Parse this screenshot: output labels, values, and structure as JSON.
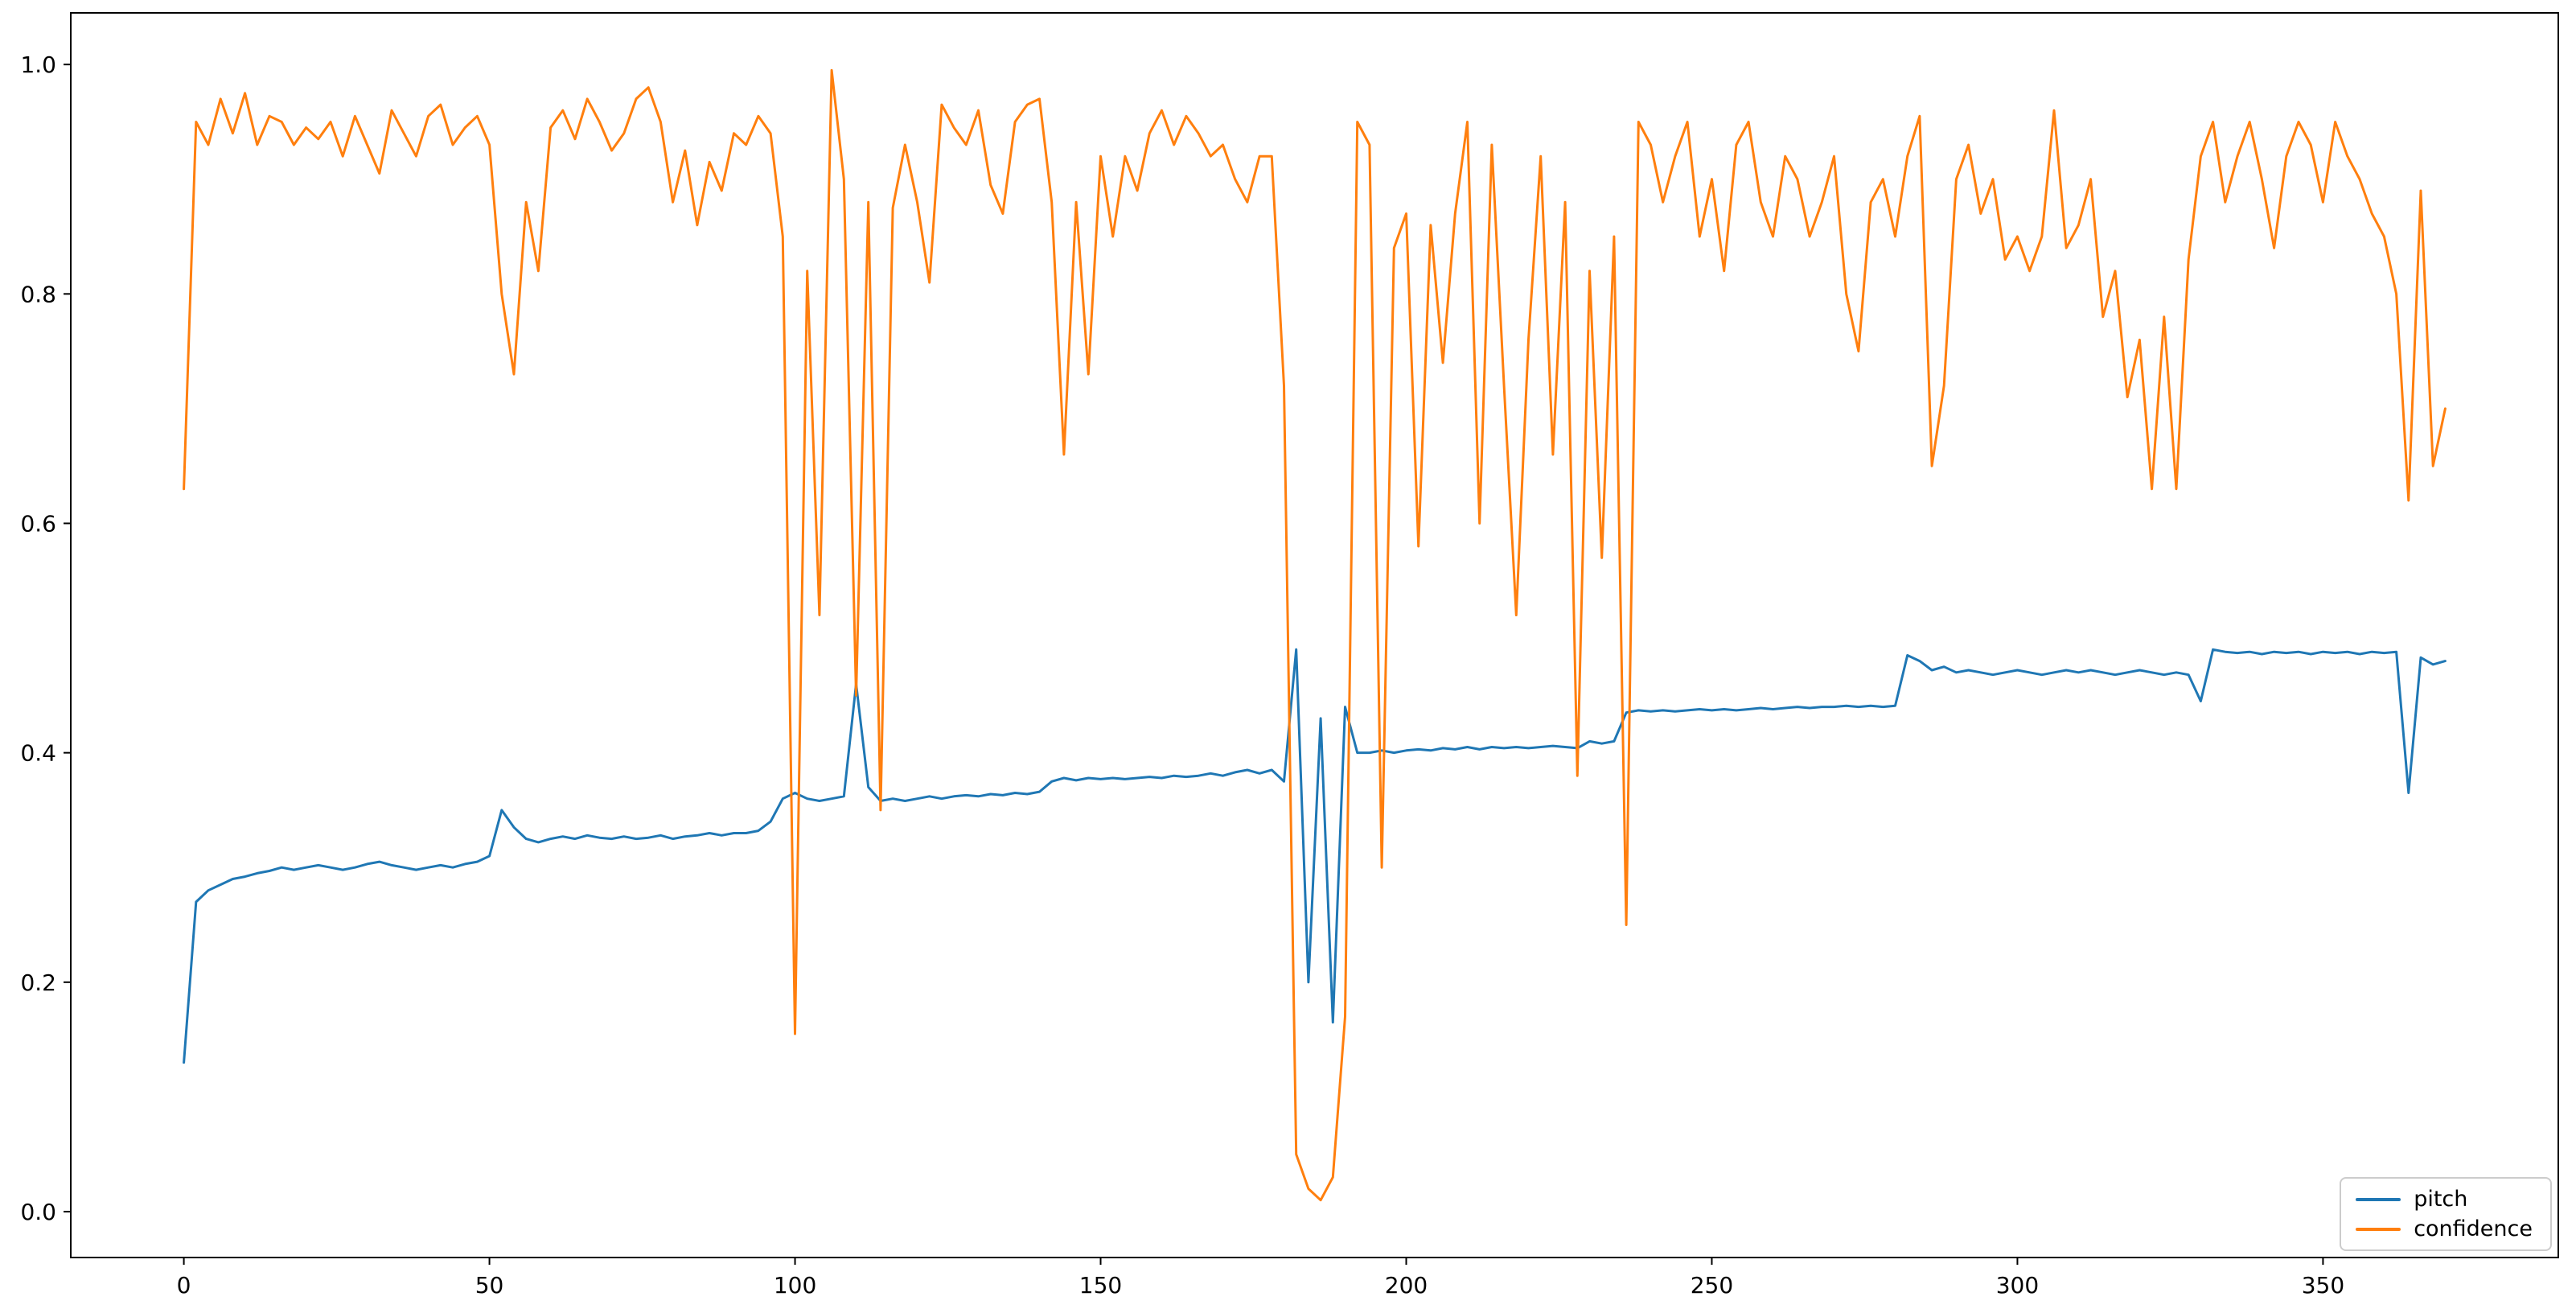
{
  "figure": {
    "background": "#ffffff",
    "axes_border_color": "#000000"
  },
  "legend": {
    "position": "lower-right",
    "entries": [
      "pitch",
      "confidence"
    ]
  },
  "chart_data": {
    "type": "line",
    "title": "",
    "xlabel": "",
    "ylabel": "",
    "grid": false,
    "xlim": [
      -18.5,
      388.5
    ],
    "ylim": [
      -0.04,
      1.045
    ],
    "xticks": [
      0,
      50,
      100,
      150,
      200,
      250,
      300,
      350
    ],
    "xtick_labels": [
      "0",
      "50",
      "100",
      "150",
      "200",
      "250",
      "300",
      "350"
    ],
    "yticks": [
      0.0,
      0.2,
      0.4,
      0.6,
      0.8,
      1.0
    ],
    "ytick_labels": [
      "0.0",
      "0.2",
      "0.4",
      "0.6",
      "0.8",
      "1.0"
    ],
    "x": [
      0,
      2,
      4,
      6,
      8,
      10,
      12,
      14,
      16,
      18,
      20,
      22,
      24,
      26,
      28,
      30,
      32,
      34,
      36,
      38,
      40,
      42,
      44,
      46,
      48,
      50,
      52,
      54,
      56,
      58,
      60,
      62,
      64,
      66,
      68,
      70,
      72,
      74,
      76,
      78,
      80,
      82,
      84,
      86,
      88,
      90,
      92,
      94,
      96,
      98,
      100,
      102,
      104,
      106,
      108,
      110,
      112,
      114,
      116,
      118,
      120,
      122,
      124,
      126,
      128,
      130,
      132,
      134,
      136,
      138,
      140,
      142,
      144,
      146,
      148,
      150,
      152,
      154,
      156,
      158,
      160,
      162,
      164,
      166,
      168,
      170,
      172,
      174,
      176,
      178,
      180,
      182,
      184,
      186,
      188,
      190,
      192,
      194,
      196,
      198,
      200,
      202,
      204,
      206,
      208,
      210,
      212,
      214,
      216,
      218,
      220,
      222,
      224,
      226,
      228,
      230,
      232,
      234,
      236,
      238,
      240,
      242,
      244,
      246,
      248,
      250,
      252,
      254,
      256,
      258,
      260,
      262,
      264,
      266,
      268,
      270,
      272,
      274,
      276,
      278,
      280,
      282,
      284,
      286,
      288,
      290,
      292,
      294,
      296,
      298,
      300,
      302,
      304,
      306,
      308,
      310,
      312,
      314,
      316,
      318,
      320,
      322,
      324,
      326,
      328,
      330,
      332,
      334,
      336,
      338,
      340,
      342,
      344,
      346,
      348,
      350,
      352,
      354,
      356,
      358,
      360,
      362,
      364,
      366,
      368,
      370
    ],
    "series": [
      {
        "name": "pitch",
        "color": "#1f77b4",
        "values": [
          0.13,
          0.27,
          0.28,
          0.285,
          0.29,
          0.292,
          0.295,
          0.297,
          0.3,
          0.298,
          0.3,
          0.302,
          0.3,
          0.298,
          0.3,
          0.303,
          0.305,
          0.302,
          0.3,
          0.298,
          0.3,
          0.302,
          0.3,
          0.303,
          0.305,
          0.31,
          0.35,
          0.335,
          0.325,
          0.322,
          0.325,
          0.327,
          0.325,
          0.328,
          0.326,
          0.325,
          0.327,
          0.325,
          0.326,
          0.328,
          0.325,
          0.327,
          0.328,
          0.33,
          0.328,
          0.33,
          0.33,
          0.332,
          0.34,
          0.36,
          0.365,
          0.36,
          0.358,
          0.36,
          0.362,
          0.46,
          0.37,
          0.358,
          0.36,
          0.358,
          0.36,
          0.362,
          0.36,
          0.362,
          0.363,
          0.362,
          0.364,
          0.363,
          0.365,
          0.364,
          0.366,
          0.375,
          0.378,
          0.376,
          0.378,
          0.377,
          0.378,
          0.377,
          0.378,
          0.379,
          0.378,
          0.38,
          0.379,
          0.38,
          0.382,
          0.38,
          0.383,
          0.385,
          0.382,
          0.385,
          0.375,
          0.49,
          0.2,
          0.43,
          0.165,
          0.44,
          0.4,
          0.4,
          0.402,
          0.4,
          0.402,
          0.403,
          0.402,
          0.404,
          0.403,
          0.405,
          0.403,
          0.405,
          0.404,
          0.405,
          0.404,
          0.405,
          0.406,
          0.405,
          0.404,
          0.41,
          0.408,
          0.41,
          0.435,
          0.437,
          0.436,
          0.437,
          0.436,
          0.437,
          0.438,
          0.437,
          0.438,
          0.437,
          0.438,
          0.439,
          0.438,
          0.439,
          0.44,
          0.439,
          0.44,
          0.44,
          0.441,
          0.44,
          0.441,
          0.44,
          0.441,
          0.485,
          0.48,
          0.472,
          0.475,
          0.47,
          0.472,
          0.47,
          0.468,
          0.47,
          0.472,
          0.47,
          0.468,
          0.47,
          0.472,
          0.47,
          0.472,
          0.47,
          0.468,
          0.47,
          0.472,
          0.47,
          0.468,
          0.47,
          0.468,
          0.445,
          0.49,
          0.488,
          0.487,
          0.488,
          0.486,
          0.488,
          0.487,
          0.488,
          0.486,
          0.488,
          0.487,
          0.488,
          0.486,
          0.488,
          0.487,
          0.488,
          0.365,
          0.483,
          0.477,
          0.48
        ]
      },
      {
        "name": "confidence",
        "color": "#ff7f0e",
        "values": [
          0.63,
          0.95,
          0.93,
          0.97,
          0.94,
          0.975,
          0.93,
          0.955,
          0.95,
          0.93,
          0.945,
          0.935,
          0.95,
          0.92,
          0.955,
          0.93,
          0.905,
          0.96,
          0.94,
          0.92,
          0.955,
          0.965,
          0.93,
          0.945,
          0.955,
          0.93,
          0.8,
          0.73,
          0.88,
          0.82,
          0.945,
          0.96,
          0.935,
          0.97,
          0.95,
          0.925,
          0.94,
          0.97,
          0.98,
          0.95,
          0.88,
          0.925,
          0.86,
          0.915,
          0.89,
          0.94,
          0.93,
          0.955,
          0.94,
          0.85,
          0.155,
          0.82,
          0.52,
          0.995,
          0.9,
          0.45,
          0.88,
          0.35,
          0.875,
          0.93,
          0.88,
          0.81,
          0.965,
          0.945,
          0.93,
          0.96,
          0.895,
          0.87,
          0.95,
          0.965,
          0.97,
          0.88,
          0.66,
          0.88,
          0.73,
          0.92,
          0.85,
          0.92,
          0.89,
          0.94,
          0.96,
          0.93,
          0.955,
          0.94,
          0.92,
          0.93,
          0.9,
          0.88,
          0.92,
          0.92,
          0.72,
          0.05,
          0.02,
          0.01,
          0.03,
          0.17,
          0.95,
          0.93,
          0.3,
          0.84,
          0.87,
          0.58,
          0.86,
          0.74,
          0.87,
          0.95,
          0.6,
          0.93,
          0.72,
          0.52,
          0.76,
          0.92,
          0.66,
          0.88,
          0.38,
          0.82,
          0.57,
          0.85,
          0.25,
          0.95,
          0.93,
          0.88,
          0.92,
          0.95,
          0.85,
          0.9,
          0.82,
          0.93,
          0.95,
          0.88,
          0.85,
          0.92,
          0.9,
          0.85,
          0.88,
          0.92,
          0.8,
          0.75,
          0.88,
          0.9,
          0.85,
          0.92,
          0.955,
          0.65,
          0.72,
          0.9,
          0.93,
          0.87,
          0.9,
          0.83,
          0.85,
          0.82,
          0.85,
          0.96,
          0.84,
          0.86,
          0.9,
          0.78,
          0.82,
          0.71,
          0.76,
          0.63,
          0.78,
          0.63,
          0.83,
          0.92,
          0.95,
          0.88,
          0.92,
          0.95,
          0.9,
          0.84,
          0.92,
          0.95,
          0.93,
          0.88,
          0.95,
          0.92,
          0.9,
          0.87,
          0.85,
          0.8,
          0.62,
          0.89,
          0.65,
          0.7
        ]
      }
    ]
  }
}
